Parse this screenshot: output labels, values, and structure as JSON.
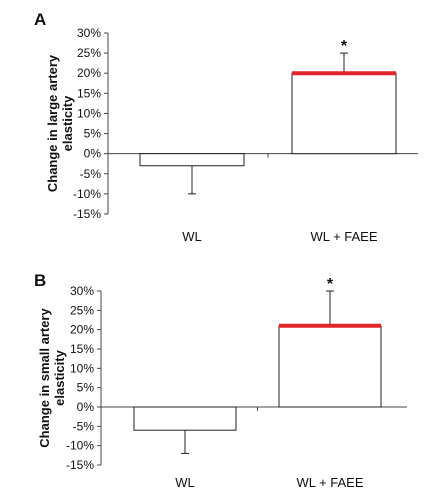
{
  "chart_data": [
    {
      "type": "bar",
      "panel": "A",
      "categories": [
        "WL",
        "WL + FAEE"
      ],
      "values": [
        -3,
        20
      ],
      "error_bars": [
        {
          "low": -10,
          "high": -3
        },
        {
          "low": 20,
          "high": 25
        }
      ],
      "significance": [
        "",
        "*"
      ],
      "ylabel_lines": [
        "Change in large artery",
        "elasticity"
      ],
      "ylim": [
        -15,
        30
      ],
      "yticks": [
        -15,
        -10,
        -5,
        0,
        5,
        10,
        15,
        20,
        25,
        30
      ],
      "ytick_labels": [
        "-15%",
        "-10%",
        "-5%",
        "0%",
        "5%",
        "10%",
        "15%",
        "20%",
        "25%",
        "30%"
      ],
      "grid": false,
      "bar_top_highlight": [
        false,
        true
      ]
    },
    {
      "type": "bar",
      "panel": "B",
      "categories": [
        "WL",
        "WL + FAEE"
      ],
      "values": [
        -6,
        21
      ],
      "error_bars": [
        {
          "low": -12,
          "high": -6
        },
        {
          "low": 21,
          "high": 30
        }
      ],
      "significance": [
        "",
        "*"
      ],
      "ylabel_lines": [
        "Change in small artery",
        "elasticity"
      ],
      "ylim": [
        -15,
        30
      ],
      "yticks": [
        -15,
        -10,
        -5,
        0,
        5,
        10,
        15,
        20,
        25,
        30
      ],
      "ytick_labels": [
        "-15%",
        "-10%",
        "-5%",
        "0%",
        "5%",
        "10%",
        "15%",
        "20%",
        "25%",
        "30%"
      ],
      "grid": false,
      "bar_top_highlight": [
        false,
        true
      ]
    }
  ],
  "colors": {
    "bar_fill": "#ffffff",
    "bar_stroke": "#222222",
    "axis": "#444444",
    "highlight": "#e0262b",
    "text": "#111111"
  }
}
